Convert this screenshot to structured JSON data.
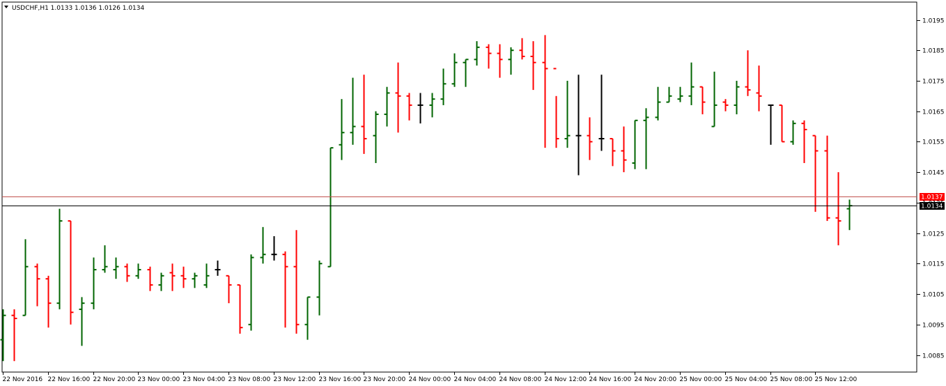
{
  "header": {
    "symbol_info": "USDCHF,H1  1.0133 1.0136 1.0126 1.0134",
    "menu_icon": "triangle-down-icon"
  },
  "price_tags": {
    "ask": "1.0137",
    "bid": "1.0134"
  },
  "colors": {
    "up": "#006400",
    "down": "#ff0000",
    "neutral": "#000000",
    "ask_line": "#c0504d",
    "ask_tag": "#ff0000",
    "bid_line": "#000000",
    "bid_tag": "#000000"
  },
  "chart_data": {
    "type": "ohlc",
    "title": "USDCHF,H1",
    "ylim": [
      1.008,
      1.0199
    ],
    "y_ticks": [
      "1.0195",
      "1.0185",
      "1.0175",
      "1.0165",
      "1.0155",
      "1.0145",
      "1.0135",
      "1.0125",
      "1.0115",
      "1.0105",
      "1.0095",
      "1.0085"
    ],
    "y_tick_values": [
      1.0195,
      1.0185,
      1.0175,
      1.0165,
      1.0155,
      1.0145,
      1.0135,
      1.0125,
      1.0115,
      1.0105,
      1.0095,
      1.0085
    ],
    "x_labels": [
      "22 Nov 2016",
      "22 Nov 16:00",
      "22 Nov 20:00",
      "23 Nov 00:00",
      "23 Nov 04:00",
      "23 Nov 08:00",
      "23 Nov 12:00",
      "23 Nov 16:00",
      "23 Nov 20:00",
      "24 Nov 00:00",
      "24 Nov 04:00",
      "24 Nov 08:00",
      "24 Nov 12:00",
      "24 Nov 16:00",
      "24 Nov 20:00",
      "25 Nov 00:00",
      "25 Nov 04:00",
      "25 Nov 08:00",
      "25 Nov 12:00"
    ],
    "x_label_bar_index": [
      0,
      4,
      8,
      12,
      16,
      20,
      24,
      28,
      32,
      36,
      40,
      44,
      48,
      52,
      56,
      60,
      64,
      68,
      72
    ],
    "ask_price": 1.0137,
    "bid_price": 1.0134,
    "grid": false,
    "bars": [
      [
        1.009,
        1.01,
        1.0083,
        1.0098
      ],
      [
        1.0098,
        1.01,
        1.0083,
        1.0097
      ],
      [
        1.0098,
        1.0123,
        1.0098,
        1.0114
      ],
      [
        1.0114,
        1.0115,
        1.0101,
        1.011
      ],
      [
        1.011,
        1.0111,
        1.0094,
        1.0102
      ],
      [
        1.0102,
        1.0133,
        1.01,
        1.0129
      ],
      [
        1.0129,
        1.0129,
        1.0095,
        1.0099
      ],
      [
        1.01,
        1.0104,
        1.0088,
        1.0102
      ],
      [
        1.0102,
        1.0117,
        1.01,
        1.0113
      ],
      [
        1.0113,
        1.0121,
        1.0112,
        1.0114
      ],
      [
        1.0113,
        1.0117,
        1.011,
        1.0114
      ],
      [
        1.0114,
        1.0115,
        1.0109,
        1.0111
      ],
      [
        1.0111,
        1.0115,
        1.011,
        1.0113
      ],
      [
        1.0113,
        1.0114,
        1.0106,
        1.0108
      ],
      [
        1.0108,
        1.0112,
        1.0106,
        1.0111
      ],
      [
        1.0112,
        1.0115,
        1.0106,
        1.0111
      ],
      [
        1.0111,
        1.0114,
        1.0107,
        1.011
      ],
      [
        1.011,
        1.0112,
        1.0107,
        1.0111
      ],
      [
        1.0108,
        1.0115,
        1.0107,
        1.0111
      ],
      [
        1.0113,
        1.0116,
        1.0111,
        1.0113
      ],
      [
        1.0111,
        1.0111,
        1.0102,
        1.0108
      ],
      [
        1.0108,
        1.0108,
        1.0092,
        1.0094
      ],
      [
        1.0095,
        1.0118,
        1.0093,
        1.0117
      ],
      [
        1.0117,
        1.0127,
        1.0115,
        1.0118
      ],
      [
        1.0118,
        1.0124,
        1.0116,
        1.0118
      ],
      [
        1.0118,
        1.0119,
        1.0094,
        1.0114
      ],
      [
        1.0114,
        1.0126,
        1.0092,
        1.0095
      ],
      [
        1.0095,
        1.0104,
        1.009,
        1.0104
      ],
      [
        1.0104,
        1.0116,
        1.0098,
        1.0115
      ],
      [
        1.0114,
        1.0153,
        1.0114,
        1.0153
      ],
      [
        1.0154,
        1.0169,
        1.0149,
        1.0158
      ],
      [
        1.0158,
        1.0176,
        1.0154,
        1.016
      ],
      [
        1.016,
        1.0177,
        1.0151,
        1.0156
      ],
      [
        1.0157,
        1.0165,
        1.0148,
        1.0164
      ],
      [
        1.0164,
        1.0173,
        1.016,
        1.0171
      ],
      [
        1.0171,
        1.0181,
        1.0158,
        1.017
      ],
      [
        1.017,
        1.0171,
        1.0162,
        1.0167
      ],
      [
        1.0167,
        1.0171,
        1.0161,
        1.0167
      ],
      [
        1.0167,
        1.0171,
        1.0163,
        1.0169
      ],
      [
        1.0169,
        1.0179,
        1.0167,
        1.0174
      ],
      [
        1.0174,
        1.0184,
        1.0173,
        1.0181
      ],
      [
        1.0181,
        1.0182,
        1.0173,
        1.0182
      ],
      [
        1.0182,
        1.0188,
        1.018,
        1.0186
      ],
      [
        1.0186,
        1.0187,
        1.0179,
        1.0184
      ],
      [
        1.0184,
        1.0187,
        1.0176,
        1.0182
      ],
      [
        1.0182,
        1.0186,
        1.0177,
        1.0185
      ],
      [
        1.0185,
        1.0189,
        1.0182,
        1.0183
      ],
      [
        1.0183,
        1.0188,
        1.0172,
        1.0181
      ],
      [
        1.0181,
        1.019,
        1.0153,
        1.0179
      ],
      [
        1.0179,
        1.017,
        1.0153,
        1.0156
      ],
      [
        1.0156,
        1.0175,
        1.0153,
        1.0157
      ],
      [
        1.0157,
        1.0177,
        1.0144,
        1.0157
      ],
      [
        1.0157,
        1.0163,
        1.0149,
        1.0155
      ],
      [
        1.0156,
        1.0177,
        1.0152,
        1.0156
      ],
      [
        1.0156,
        1.0156,
        1.0147,
        1.0152
      ],
      [
        1.0152,
        1.016,
        1.0145,
        1.0149
      ],
      [
        1.0148,
        1.0162,
        1.0146,
        1.0162
      ],
      [
        1.0162,
        1.0166,
        1.0146,
        1.0163
      ],
      [
        1.0163,
        1.0173,
        1.0162,
        1.0168
      ],
      [
        1.0168,
        1.0173,
        1.0168,
        1.017
      ],
      [
        1.0169,
        1.0173,
        1.0168,
        1.017
      ],
      [
        1.017,
        1.0181,
        1.0167,
        1.0173
      ],
      [
        1.0173,
        1.0173,
        1.0164,
        1.0168
      ],
      [
        1.016,
        1.0178,
        1.016,
        1.0167
      ],
      [
        1.0168,
        1.0169,
        1.0165,
        1.0167
      ],
      [
        1.0167,
        1.0175,
        1.0164,
        1.0173
      ],
      [
        1.0173,
        1.0185,
        1.017,
        1.0172
      ],
      [
        1.0171,
        1.018,
        1.0165,
        1.017
      ],
      [
        1.0167,
        1.0167,
        1.0154,
        1.0167
      ],
      [
        1.0167,
        1.0167,
        1.0155,
        1.0155
      ],
      [
        1.0155,
        1.0162,
        1.0154,
        1.0161
      ],
      [
        1.0161,
        1.0162,
        1.0148,
        1.0159
      ],
      [
        1.0157,
        1.0157,
        1.0132,
        1.0152
      ],
      [
        1.0152,
        1.0157,
        1.0129,
        1.013
      ],
      [
        1.013,
        1.0145,
        1.0121,
        1.0129
      ],
      [
        1.0133,
        1.0136,
        1.0126,
        1.0134
      ]
    ]
  }
}
